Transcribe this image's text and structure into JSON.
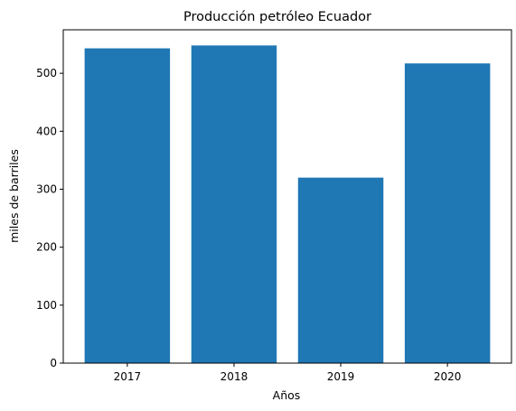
{
  "chart_data": {
    "type": "bar",
    "title": "Producción petróleo Ecuador",
    "xlabel": "Años",
    "ylabel": "miles de barriles",
    "categories": [
      "2017",
      "2018",
      "2019",
      "2020"
    ],
    "values": [
      543,
      548,
      320,
      517
    ],
    "ylim": [
      0,
      575
    ],
    "yticks": [
      0,
      100,
      200,
      300,
      400,
      500
    ],
    "bar_color": "#1f77b4",
    "grid": false,
    "legend": "none"
  }
}
